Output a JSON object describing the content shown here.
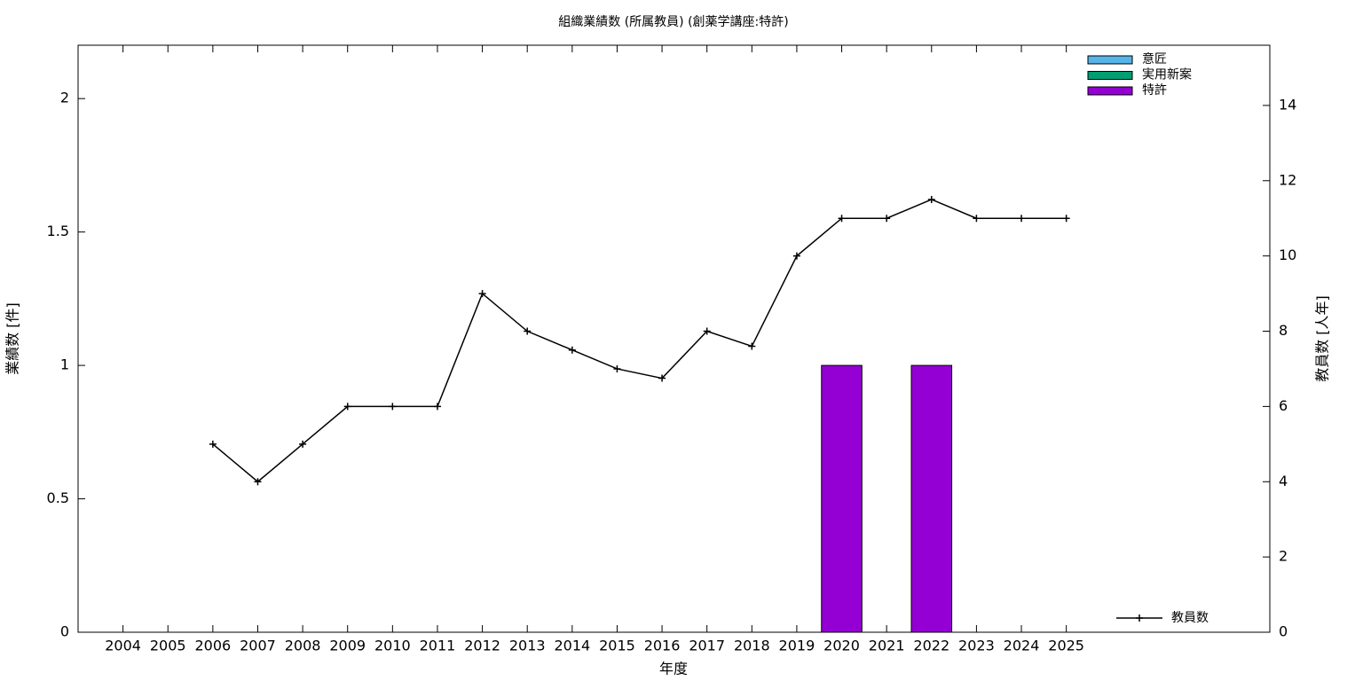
{
  "chart_data": {
    "type": "bar",
    "stacked": true,
    "title": "組織業績数 (所属教員) (創薬学講座:特許)",
    "x_label": "年度",
    "y_label": "業績数 [件]",
    "y2_label": "教員数 [人年]",
    "categories": [
      "2004",
      "2005",
      "2006",
      "2007",
      "2008",
      "2009",
      "2010",
      "2011",
      "2012",
      "2013",
      "2014",
      "2015",
      "2016",
      "2017",
      "2018",
      "2019",
      "2020",
      "2021",
      "2022",
      "2023",
      "2024",
      "2025"
    ],
    "series": [
      {
        "name": "意匠",
        "color": "#56b4e9",
        "values": [
          0,
          0,
          0,
          0,
          0,
          0,
          0,
          0,
          0,
          0,
          0,
          0,
          0,
          0,
          0,
          0,
          0,
          0,
          0,
          0,
          0,
          0
        ]
      },
      {
        "name": "実用新案",
        "color": "#009e73",
        "values": [
          0,
          0,
          0,
          0,
          0,
          0,
          0,
          0,
          0,
          0,
          0,
          0,
          0,
          0,
          0,
          0,
          0,
          0,
          0,
          0,
          0,
          0
        ]
      },
      {
        "name": "特許",
        "color": "#9400d3",
        "values": [
          0,
          0,
          0,
          0,
          0,
          0,
          0,
          0,
          0,
          0,
          0,
          0,
          0,
          0,
          0,
          0,
          1,
          0,
          1,
          0,
          0,
          0
        ]
      },
      {
        "name": "教員数",
        "type": "line",
        "axis": "y2",
        "color": "#000000",
        "values": [
          null,
          null,
          5,
          4,
          5,
          6,
          6,
          6,
          9,
          8,
          7.5,
          7,
          6.75,
          8,
          7.6,
          10,
          11,
          11,
          11.5,
          11,
          11,
          11
        ]
      }
    ],
    "ylim": [
      0,
      2.2
    ],
    "yticks": [
      0,
      0.5,
      1,
      1.5,
      2
    ],
    "y2lim": [
      0,
      15.6
    ],
    "y2ticks": [
      0,
      2,
      4,
      6,
      8,
      10,
      12,
      14
    ],
    "legend": "top-right",
    "line_legend": "bottom-right"
  }
}
